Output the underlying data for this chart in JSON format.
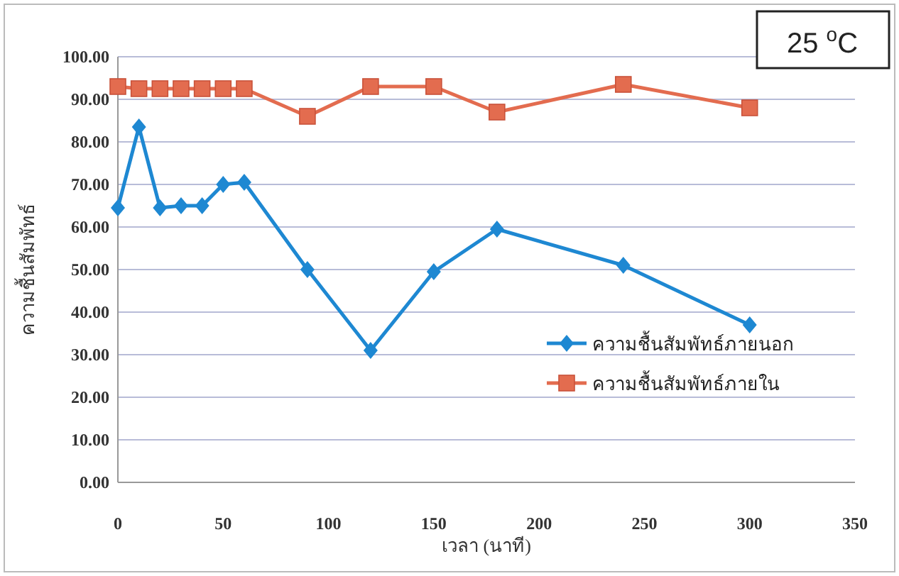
{
  "chart_data": {
    "type": "line",
    "xlabel": "เวลา (นาที)",
    "ylabel": "ความชื้นสัมพัทธ์",
    "annotations": [
      "25 $^{o}$C"
    ],
    "x": [
      0,
      10,
      20,
      30,
      40,
      50,
      60,
      90,
      120,
      150,
      180,
      240,
      300
    ],
    "series": [
      {
        "name": "ความชื้นสัมพัทธ์ภายนอก",
        "color": "#1e88d2",
        "marker": "diamond",
        "values": [
          64.5,
          83.5,
          64.5,
          65,
          65,
          70,
          70.5,
          50,
          31,
          49.5,
          59.5,
          51,
          37
        ]
      },
      {
        "name": "ความชื้นสัมพัทธ์ภายใน",
        "color": "#e36c4f",
        "marker": "square",
        "values": [
          93,
          92.5,
          92.5,
          92.5,
          92.5,
          92.5,
          92.5,
          86,
          93,
          93,
          87,
          93.5,
          88
        ]
      }
    ],
    "xlim": [
      0,
      350
    ],
    "xticks": [
      0,
      50,
      100,
      150,
      200,
      250,
      300,
      350
    ],
    "ylim": [
      0,
      100
    ],
    "yticks": [
      {
        "value": 0,
        "label": "0.00"
      },
      {
        "value": 10,
        "label": "10.00"
      },
      {
        "value": 20,
        "label": "20.00"
      },
      {
        "value": 30,
        "label": "30.00"
      },
      {
        "value": 40,
        "label": "40.00"
      },
      {
        "value": 50,
        "label": "50.00"
      },
      {
        "value": 60,
        "label": "60.00"
      },
      {
        "value": 70,
        "label": "70.00"
      },
      {
        "value": 80,
        "label": "80.00"
      },
      {
        "value": 90,
        "label": "90.00"
      },
      {
        "value": 100,
        "label": "100.00"
      }
    ],
    "grid": "y",
    "legend": "right",
    "line_style": "solid"
  }
}
